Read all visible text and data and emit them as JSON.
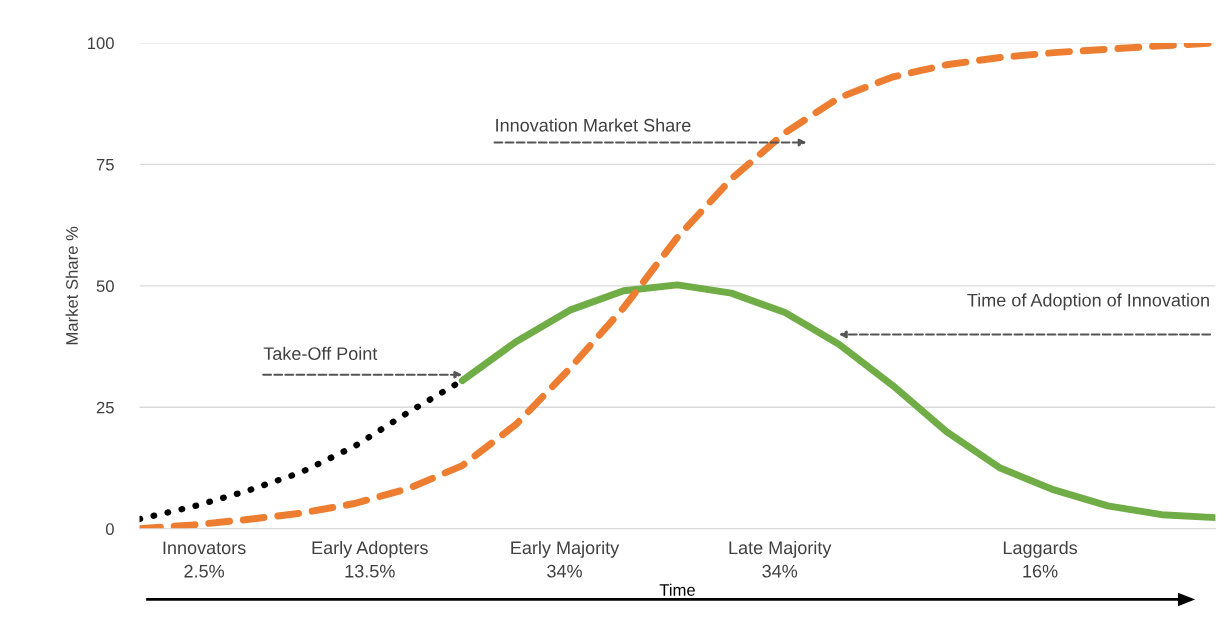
{
  "chart_data": {
    "type": "line",
    "ylabel": "Market Share %",
    "xlabel": "Time",
    "categories": [
      null,
      null,
      null,
      null,
      null,
      null,
      null,
      null,
      null,
      null,
      null,
      null,
      null,
      null,
      null,
      null,
      null,
      null,
      null,
      null,
      null
    ],
    "ylim": [
      0,
      100
    ],
    "yticks": [
      0,
      25,
      50,
      75,
      100
    ],
    "grid": "y",
    "marker": "none",
    "series": [
      {
        "line_style": "dotted",
        "color": "#000000",
        "values": [
          2,
          4.6,
          7.8,
          11.6,
          17,
          24,
          30.5,
          null,
          null,
          null,
          null,
          null,
          null,
          null,
          null,
          null,
          null,
          null,
          null,
          null,
          null
        ]
      },
      {
        "line_style": "solid",
        "color": "#70ad47",
        "values": [
          null,
          null,
          null,
          null,
          null,
          null,
          30.5,
          38.5,
          45,
          49,
          50.2,
          48.5,
          44.5,
          38,
          29.5,
          20,
          12.5,
          8,
          4.7,
          2.9,
          2.3
        ]
      },
      {
        "line_style": "dashed",
        "color": "#ed7d31",
        "values": [
          0,
          0.8,
          1.9,
          3.2,
          5.2,
          8.3,
          13,
          21.5,
          33,
          45.5,
          60,
          72,
          81.5,
          88.7,
          93,
          95.5,
          97,
          98,
          98.7,
          99.4,
          100
        ]
      }
    ],
    "annotations": [
      "Innovation Market Share",
      "Time of Adoption of Innovation",
      "Take-Off Point",
      "Innovators\n2.5%",
      "Early Adopters\n13.5%",
      "Early Majority\n34%",
      "Late Majority\n34%",
      "Laggards\n16%"
    ]
  }
}
